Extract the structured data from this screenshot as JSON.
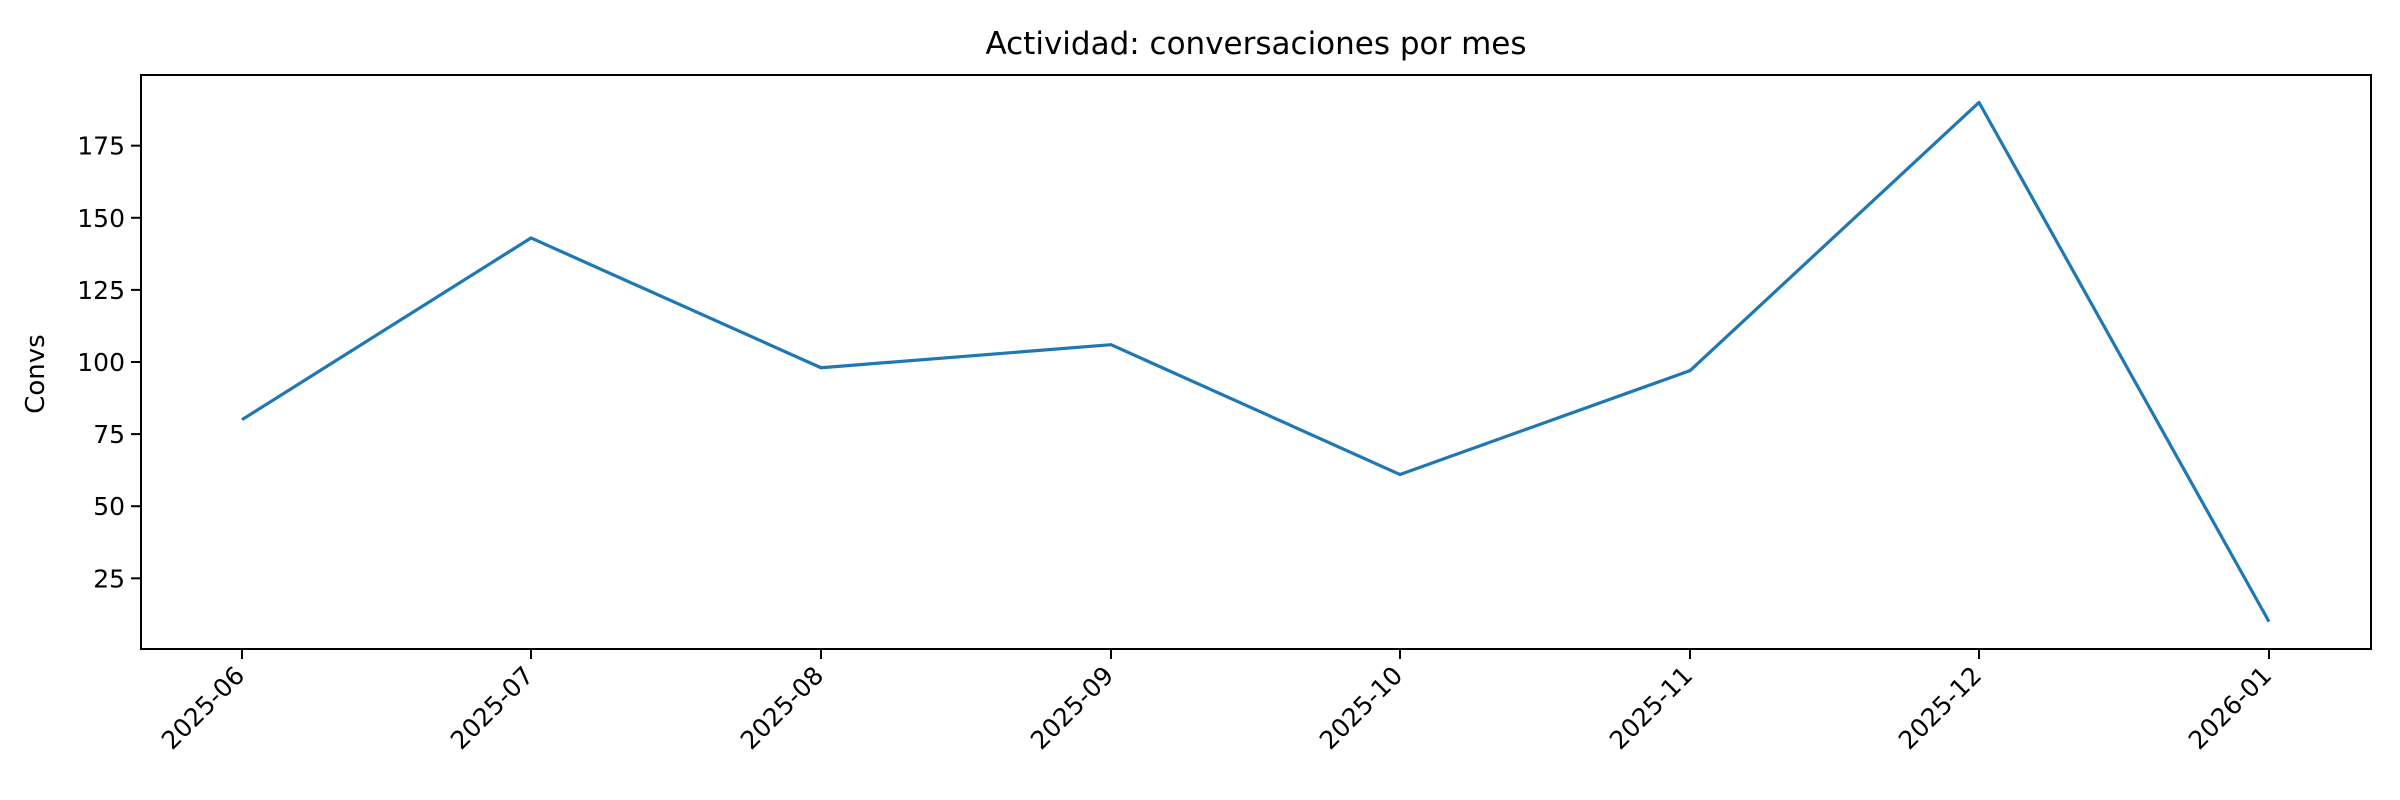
{
  "chart_data": {
    "type": "line",
    "title": "Actividad: conversaciones por mes",
    "xlabel": "",
    "ylabel": "Convs",
    "x": [
      "2025-06",
      "2025-07",
      "2025-08",
      "2025-09",
      "2025-10",
      "2025-11",
      "2025-12",
      "2026-01"
    ],
    "series": [
      {
        "values": [
          80,
          143,
          98,
          106,
          61,
          97,
          190,
          10
        ],
        "color": "#1f77b4"
      }
    ],
    "ylim": [
      0.5,
      199.5
    ],
    "yticks": [
      25,
      50,
      75,
      100,
      125,
      150,
      175
    ],
    "grid": false,
    "legend": "none"
  }
}
